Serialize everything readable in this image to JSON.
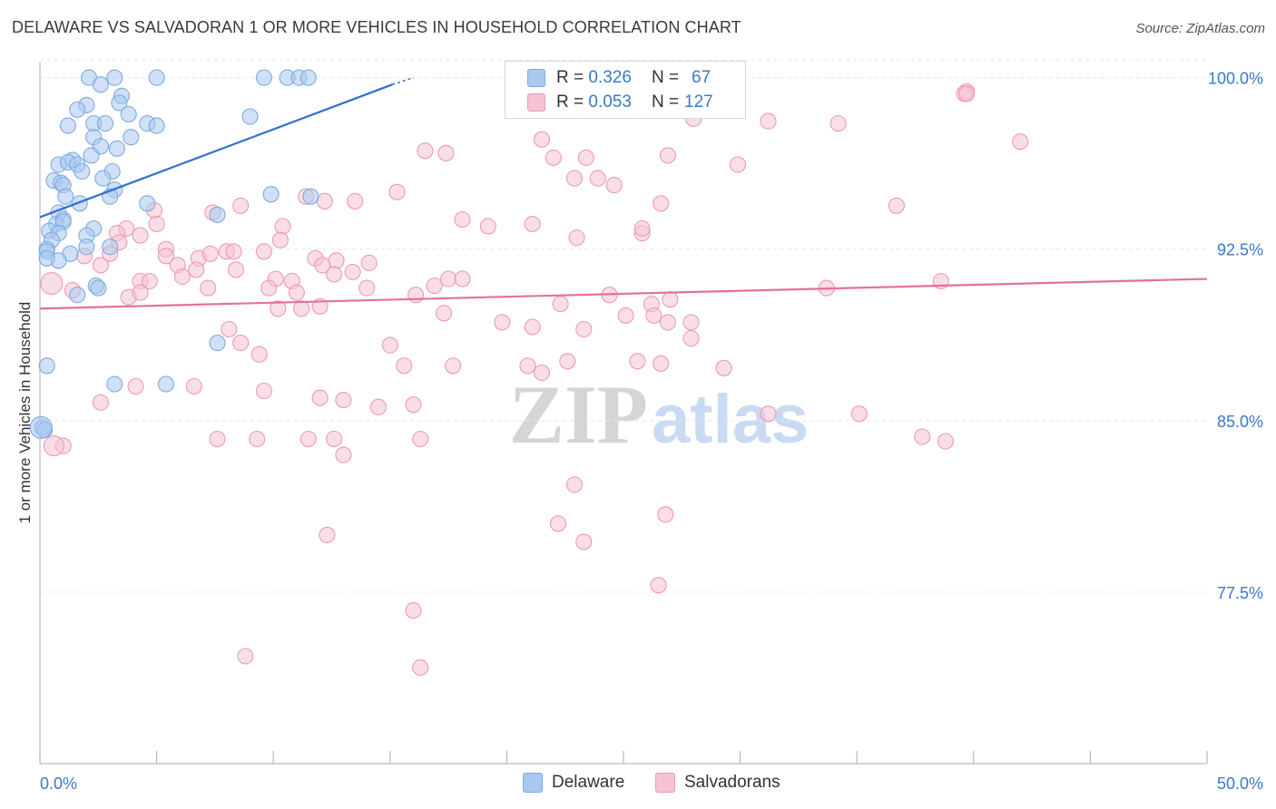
{
  "title": "DELAWARE VS SALVADORAN 1 OR MORE VEHICLES IN HOUSEHOLD CORRELATION CHART",
  "source": "Source: ZipAtlas.com",
  "watermark": {
    "zip": "ZIP",
    "atlas": "atlas"
  },
  "legend_top": {
    "rows": [
      {
        "r_label": "R =",
        "r_value": "0.326",
        "n_label": "N =",
        "n_value": "67"
      },
      {
        "r_label": "R =",
        "r_value": "0.053",
        "n_label": "N =",
        "n_value": "127"
      }
    ]
  },
  "legend_bottom": {
    "items": [
      "Delaware",
      "Salvadorans"
    ]
  },
  "colors": {
    "delaware_fill": "#a9c8f0",
    "delaware_stroke": "#7eaae0",
    "delaware_line": "#2f6fcf",
    "salv_fill": "#f6c3d3",
    "salv_stroke": "#ec9ab5",
    "salv_line": "#e4709a",
    "tick_label": "#3b78c7",
    "grid": "#e6e6e6"
  },
  "chart_data": {
    "type": "scatter",
    "xlabel": "",
    "ylabel": "1 or more Vehicles in Household",
    "xlim": [
      0,
      50
    ],
    "ylim": [
      70,
      100.7
    ],
    "x_tick_labels": [
      {
        "value": 0,
        "label": "0.0%"
      },
      {
        "value": 50,
        "label": "50.0%"
      }
    ],
    "x_minor_ticks": [
      5,
      10,
      15,
      20,
      25,
      30,
      35,
      40,
      45
    ],
    "y_ticks": [
      {
        "value": 77.5,
        "label": "77.5%"
      },
      {
        "value": 85.0,
        "label": "85.0%"
      },
      {
        "value": 92.5,
        "label": "92.5%"
      },
      {
        "value": 100.0,
        "label": "100.0%"
      }
    ],
    "grid": true,
    "series": [
      {
        "name": "Delaware",
        "trend": {
          "x": [
            0,
            15.1
          ],
          "y": [
            93.9,
            99.7
          ],
          "dashed_to": [
            16.0,
            100.0
          ]
        },
        "points": [
          [
            2.1,
            100.0
          ],
          [
            3.2,
            100.0
          ],
          [
            5.0,
            100.0
          ],
          [
            9.6,
            100.0
          ],
          [
            10.6,
            100.0
          ],
          [
            11.1,
            100.0
          ],
          [
            11.5,
            100.0
          ],
          [
            2.6,
            99.7
          ],
          [
            3.5,
            99.2
          ],
          [
            3.4,
            98.9
          ],
          [
            2.0,
            98.8
          ],
          [
            1.6,
            98.6
          ],
          [
            3.8,
            98.4
          ],
          [
            9.0,
            98.3
          ],
          [
            1.2,
            97.9
          ],
          [
            2.3,
            98.0
          ],
          [
            2.8,
            98.0
          ],
          [
            4.6,
            98.0
          ],
          [
            5.0,
            97.9
          ],
          [
            3.9,
            97.4
          ],
          [
            2.3,
            97.4
          ],
          [
            2.6,
            97.0
          ],
          [
            3.3,
            96.9
          ],
          [
            2.2,
            96.6
          ],
          [
            1.4,
            96.4
          ],
          [
            0.8,
            96.2
          ],
          [
            1.2,
            96.3
          ],
          [
            1.6,
            96.2
          ],
          [
            1.8,
            95.9
          ],
          [
            3.1,
            95.9
          ],
          [
            2.7,
            95.6
          ],
          [
            0.6,
            95.5
          ],
          [
            0.9,
            95.4
          ],
          [
            1.0,
            95.3
          ],
          [
            3.2,
            95.1
          ],
          [
            3.0,
            94.8
          ],
          [
            1.1,
            94.8
          ],
          [
            9.9,
            94.9
          ],
          [
            11.6,
            94.8
          ],
          [
            1.7,
            94.5
          ],
          [
            4.6,
            94.5
          ],
          [
            0.8,
            94.1
          ],
          [
            7.6,
            94.0
          ],
          [
            1.0,
            93.8
          ],
          [
            0.7,
            93.6
          ],
          [
            1.0,
            93.7
          ],
          [
            0.4,
            93.3
          ],
          [
            2.3,
            93.4
          ],
          [
            0.8,
            93.2
          ],
          [
            2.0,
            93.1
          ],
          [
            0.5,
            92.9
          ],
          [
            2.0,
            92.6
          ],
          [
            3.0,
            92.6
          ],
          [
            0.3,
            92.5
          ],
          [
            0.3,
            92.4
          ],
          [
            1.3,
            92.3
          ],
          [
            0.8,
            92.0
          ],
          [
            0.3,
            92.1
          ],
          [
            2.4,
            90.9
          ],
          [
            2.5,
            90.8
          ],
          [
            1.6,
            90.5
          ],
          [
            0.3,
            87.4
          ],
          [
            7.6,
            88.4
          ],
          [
            3.2,
            86.6
          ],
          [
            5.4,
            86.6
          ],
          [
            0.1,
            84.7
          ],
          [
            0.2,
            84.6
          ]
        ]
      },
      {
        "name": "Salvadorans",
        "trend": {
          "x": [
            0,
            50
          ],
          "y": [
            89.9,
            91.2
          ]
        },
        "points": [
          [
            39.7,
            99.4
          ],
          [
            31.2,
            98.1
          ],
          [
            28.0,
            98.2
          ],
          [
            34.2,
            98.0
          ],
          [
            39.6,
            99.3
          ],
          [
            39.7,
            99.3
          ],
          [
            21.5,
            97.3
          ],
          [
            17.4,
            96.7
          ],
          [
            16.5,
            96.8
          ],
          [
            22.0,
            96.5
          ],
          [
            23.4,
            96.5
          ],
          [
            26.9,
            96.6
          ],
          [
            29.9,
            96.2
          ],
          [
            42.0,
            97.2
          ],
          [
            22.9,
            95.6
          ],
          [
            23.9,
            95.6
          ],
          [
            24.6,
            95.3
          ],
          [
            15.3,
            95.0
          ],
          [
            13.5,
            94.6
          ],
          [
            11.4,
            94.8
          ],
          [
            12.2,
            94.6
          ],
          [
            26.6,
            94.5
          ],
          [
            36.7,
            94.4
          ],
          [
            4.9,
            94.2
          ],
          [
            8.6,
            94.4
          ],
          [
            7.4,
            94.1
          ],
          [
            10.4,
            93.5
          ],
          [
            18.1,
            93.8
          ],
          [
            5.0,
            93.6
          ],
          [
            19.2,
            93.5
          ],
          [
            21.1,
            93.6
          ],
          [
            23.0,
            93.0
          ],
          [
            25.8,
            93.2
          ],
          [
            25.8,
            93.4
          ],
          [
            3.7,
            93.4
          ],
          [
            4.3,
            93.1
          ],
          [
            3.3,
            93.2
          ],
          [
            10.3,
            92.9
          ],
          [
            3.4,
            92.8
          ],
          [
            5.4,
            92.5
          ],
          [
            8.0,
            92.4
          ],
          [
            8.3,
            92.4
          ],
          [
            9.6,
            92.4
          ],
          [
            3.0,
            92.3
          ],
          [
            1.9,
            92.2
          ],
          [
            5.4,
            92.2
          ],
          [
            6.8,
            92.1
          ],
          [
            7.3,
            92.3
          ],
          [
            11.8,
            92.1
          ],
          [
            12.7,
            92.0
          ],
          [
            14.1,
            91.9
          ],
          [
            2.6,
            91.8
          ],
          [
            5.9,
            91.8
          ],
          [
            8.4,
            91.6
          ],
          [
            12.1,
            91.8
          ],
          [
            12.6,
            91.4
          ],
          [
            13.4,
            91.5
          ],
          [
            4.3,
            91.1
          ],
          [
            4.7,
            91.1
          ],
          [
            6.1,
            91.3
          ],
          [
            6.7,
            91.6
          ],
          [
            10.1,
            91.2
          ],
          [
            10.8,
            91.1
          ],
          [
            17.5,
            91.2
          ],
          [
            18.1,
            91.2
          ],
          [
            16.9,
            90.9
          ],
          [
            7.2,
            90.8
          ],
          [
            9.8,
            90.8
          ],
          [
            11.0,
            90.6
          ],
          [
            14.0,
            90.8
          ],
          [
            16.1,
            90.5
          ],
          [
            24.4,
            90.5
          ],
          [
            26.2,
            90.1
          ],
          [
            27.0,
            90.3
          ],
          [
            33.7,
            90.8
          ],
          [
            38.6,
            91.1
          ],
          [
            3.8,
            90.4
          ],
          [
            4.3,
            90.6
          ],
          [
            1.4,
            90.7
          ],
          [
            10.2,
            89.9
          ],
          [
            11.2,
            89.9
          ],
          [
            12.0,
            90.0
          ],
          [
            17.3,
            89.7
          ],
          [
            19.8,
            89.3
          ],
          [
            21.1,
            89.1
          ],
          [
            22.3,
            90.1
          ],
          [
            25.1,
            89.6
          ],
          [
            26.3,
            89.6
          ],
          [
            26.9,
            89.3
          ],
          [
            23.3,
            89.0
          ],
          [
            27.9,
            89.3
          ],
          [
            8.1,
            89.0
          ],
          [
            8.6,
            88.4
          ],
          [
            15.0,
            88.3
          ],
          [
            17.7,
            87.4
          ],
          [
            20.9,
            87.4
          ],
          [
            21.5,
            87.1
          ],
          [
            22.6,
            87.6
          ],
          [
            25.6,
            87.6
          ],
          [
            26.6,
            87.5
          ],
          [
            27.9,
            88.6
          ],
          [
            29.3,
            87.3
          ],
          [
            9.4,
            87.9
          ],
          [
            15.6,
            87.4
          ],
          [
            4.1,
            86.5
          ],
          [
            6.6,
            86.5
          ],
          [
            9.6,
            86.3
          ],
          [
            14.5,
            85.6
          ],
          [
            16.0,
            85.7
          ],
          [
            13.0,
            85.9
          ],
          [
            12.0,
            86.0
          ],
          [
            2.6,
            85.8
          ],
          [
            31.2,
            85.3
          ],
          [
            35.1,
            85.3
          ],
          [
            7.6,
            84.2
          ],
          [
            9.3,
            84.2
          ],
          [
            11.5,
            84.2
          ],
          [
            12.6,
            84.2
          ],
          [
            16.3,
            84.2
          ],
          [
            37.8,
            84.3
          ],
          [
            38.8,
            84.1
          ],
          [
            1.0,
            83.9
          ],
          [
            13.0,
            83.5
          ],
          [
            22.9,
            82.2
          ],
          [
            22.2,
            80.5
          ],
          [
            23.3,
            79.7
          ],
          [
            12.3,
            80.0
          ],
          [
            26.8,
            80.9
          ],
          [
            26.5,
            77.8
          ],
          [
            8.8,
            74.7
          ],
          [
            16.0,
            76.7
          ],
          [
            16.3,
            74.2
          ]
        ]
      }
    ]
  }
}
